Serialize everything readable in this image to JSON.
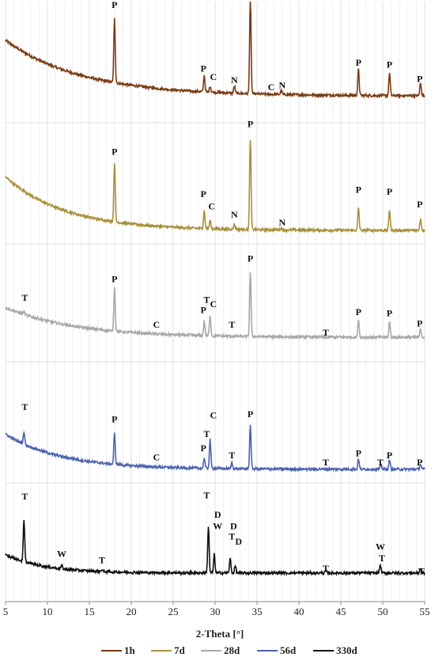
{
  "chart_data": {
    "type": "line",
    "title": "",
    "xlabel": "2-Theta [°]",
    "ylabel": "",
    "xlim": [
      5,
      55
    ],
    "x_ticks": [
      5,
      10,
      15,
      20,
      25,
      30,
      35,
      40,
      45,
      50,
      55
    ],
    "grid": true,
    "legend_position": "bottom",
    "series": [
      {
        "name": "1h",
        "color": "#7a3a12",
        "background": 0.7,
        "decay": 0.55,
        "tail": 0.16,
        "peaks": [
          [
            18.0,
            0.62
          ],
          [
            28.7,
            0.16
          ],
          [
            29.4,
            0.06
          ],
          [
            32.3,
            0.07
          ],
          [
            34.2,
            0.92
          ],
          [
            37.9,
            0.04
          ],
          [
            47.1,
            0.25
          ],
          [
            50.8,
            0.22
          ],
          [
            54.5,
            0.12
          ]
        ],
        "labels": [
          {
            "text": "P",
            "x": 18.0,
            "y": 1.0
          },
          {
            "text": "P",
            "x": 28.6,
            "y": 0.38
          },
          {
            "text": "C",
            "x": 29.8,
            "y": 0.3
          },
          {
            "text": "N",
            "x": 32.3,
            "y": 0.27
          },
          {
            "text": "P",
            "x": 34.2,
            "y": 1.3
          },
          {
            "text": "C",
            "x": 36.7,
            "y": 0.2
          },
          {
            "text": "N",
            "x": 38.0,
            "y": 0.22
          },
          {
            "text": "P",
            "x": 47.1,
            "y": 0.44
          },
          {
            "text": "P",
            "x": 50.8,
            "y": 0.42
          },
          {
            "text": "P",
            "x": 54.4,
            "y": 0.28
          }
        ]
      },
      {
        "name": "7d",
        "color": "#a8903a",
        "background": 0.55,
        "decay": 0.7,
        "tail": 0.03,
        "peaks": [
          [
            18.0,
            0.58
          ],
          [
            28.7,
            0.17
          ],
          [
            29.4,
            0.08
          ],
          [
            32.3,
            0.05
          ],
          [
            34.2,
            0.88
          ],
          [
            37.9,
            0.02
          ],
          [
            47.1,
            0.22
          ],
          [
            50.8,
            0.2
          ],
          [
            54.5,
            0.11
          ]
        ],
        "labels": [
          {
            "text": "P",
            "x": 18.0,
            "y": 0.75
          },
          {
            "text": "P",
            "x": 28.6,
            "y": 0.34
          },
          {
            "text": "C",
            "x": 29.6,
            "y": 0.22
          },
          {
            "text": "N",
            "x": 32.3,
            "y": 0.14
          },
          {
            "text": "P",
            "x": 34.2,
            "y": 1.02
          },
          {
            "text": "N",
            "x": 38.0,
            "y": 0.06
          },
          {
            "text": "P",
            "x": 47.1,
            "y": 0.38
          },
          {
            "text": "P",
            "x": 50.8,
            "y": 0.36
          },
          {
            "text": "P",
            "x": 54.4,
            "y": 0.24
          }
        ]
      },
      {
        "name": "28d",
        "color": "#a8a8a8",
        "background": 0.35,
        "decay": 0.6,
        "tail": 0.06,
        "peaks": [
          [
            7.2,
            0.03
          ],
          [
            18.0,
            0.42
          ],
          [
            28.7,
            0.14
          ],
          [
            29.4,
            0.2
          ],
          [
            34.2,
            0.62
          ],
          [
            47.1,
            0.17
          ],
          [
            50.8,
            0.15
          ],
          [
            54.5,
            0.08
          ]
        ],
        "labels": [
          {
            "text": "T",
            "x": 7.3,
            "y": 0.4
          },
          {
            "text": "P",
            "x": 18.0,
            "y": 0.58
          },
          {
            "text": "C",
            "x": 23.0,
            "y": 0.14
          },
          {
            "text": "P",
            "x": 28.6,
            "y": 0.28
          },
          {
            "text": "T",
            "x": 29.0,
            "y": 0.38
          },
          {
            "text": "C",
            "x": 29.8,
            "y": 0.34
          },
          {
            "text": "T",
            "x": 32.0,
            "y": 0.14
          },
          {
            "text": "P",
            "x": 34.2,
            "y": 0.78
          },
          {
            "text": "T",
            "x": 43.2,
            "y": 0.06
          },
          {
            "text": "P",
            "x": 47.1,
            "y": 0.26
          },
          {
            "text": "P",
            "x": 50.8,
            "y": 0.25
          },
          {
            "text": "P",
            "x": 54.4,
            "y": 0.15
          }
        ]
      },
      {
        "name": "56d",
        "color": "#4a62b0",
        "background": 0.38,
        "decay": 0.75,
        "tail": 0.04,
        "peaks": [
          [
            7.2,
            0.12
          ],
          [
            18.0,
            0.3
          ],
          [
            28.7,
            0.1
          ],
          [
            29.4,
            0.28
          ],
          [
            32.0,
            0.06
          ],
          [
            34.2,
            0.42
          ],
          [
            47.1,
            0.1
          ],
          [
            49.8,
            0.04
          ],
          [
            50.8,
            0.09
          ],
          [
            54.5,
            0.05
          ]
        ],
        "labels": [
          {
            "text": "T",
            "x": 7.3,
            "y": 0.6
          },
          {
            "text": "P",
            "x": 18.0,
            "y": 0.48
          },
          {
            "text": "C",
            "x": 23.0,
            "y": 0.11
          },
          {
            "text": "P",
            "x": 28.6,
            "y": 0.2
          },
          {
            "text": "T",
            "x": 29.0,
            "y": 0.34
          },
          {
            "text": "C",
            "x": 29.8,
            "y": 0.52
          },
          {
            "text": "T",
            "x": 32.0,
            "y": 0.13
          },
          {
            "text": "P",
            "x": 34.2,
            "y": 0.53
          },
          {
            "text": "T",
            "x": 43.2,
            "y": 0.06
          },
          {
            "text": "P",
            "x": 47.1,
            "y": 0.15
          },
          {
            "text": "T",
            "x": 49.7,
            "y": 0.06
          },
          {
            "text": "P",
            "x": 50.8,
            "y": 0.13
          },
          {
            "text": "P",
            "x": 54.4,
            "y": 0.06
          }
        ]
      },
      {
        "name": "330d",
        "color": "#111111",
        "background": 0.32,
        "decay": 1.1,
        "tail": 0.14,
        "peaks": [
          [
            7.2,
            0.4
          ],
          [
            11.7,
            0.03
          ],
          [
            16.5,
            0.02
          ],
          [
            29.2,
            0.45
          ],
          [
            29.9,
            0.18
          ],
          [
            31.8,
            0.14
          ],
          [
            32.4,
            0.07
          ],
          [
            43.2,
            0.02
          ],
          [
            49.7,
            0.08
          ],
          [
            54.5,
            0.04
          ]
        ],
        "labels": [
          {
            "text": "T",
            "x": 7.3,
            "y": 0.84
          },
          {
            "text": "W",
            "x": 11.7,
            "y": 0.28
          },
          {
            "text": "T",
            "x": 16.5,
            "y": 0.22
          },
          {
            "text": "T",
            "x": 29.0,
            "y": 0.85
          },
          {
            "text": "D",
            "x": 30.3,
            "y": 0.66
          },
          {
            "text": "W",
            "x": 30.3,
            "y": 0.55
          },
          {
            "text": "D",
            "x": 32.2,
            "y": 0.55
          },
          {
            "text": "T",
            "x": 32.0,
            "y": 0.45
          },
          {
            "text": "D",
            "x": 32.8,
            "y": 0.4
          },
          {
            "text": "T",
            "x": 43.2,
            "y": 0.14
          },
          {
            "text": "W",
            "x": 49.7,
            "y": 0.35
          },
          {
            "text": "T",
            "x": 49.9,
            "y": 0.24
          },
          {
            "text": "T",
            "x": 54.6,
            "y": 0.11
          }
        ]
      }
    ]
  }
}
